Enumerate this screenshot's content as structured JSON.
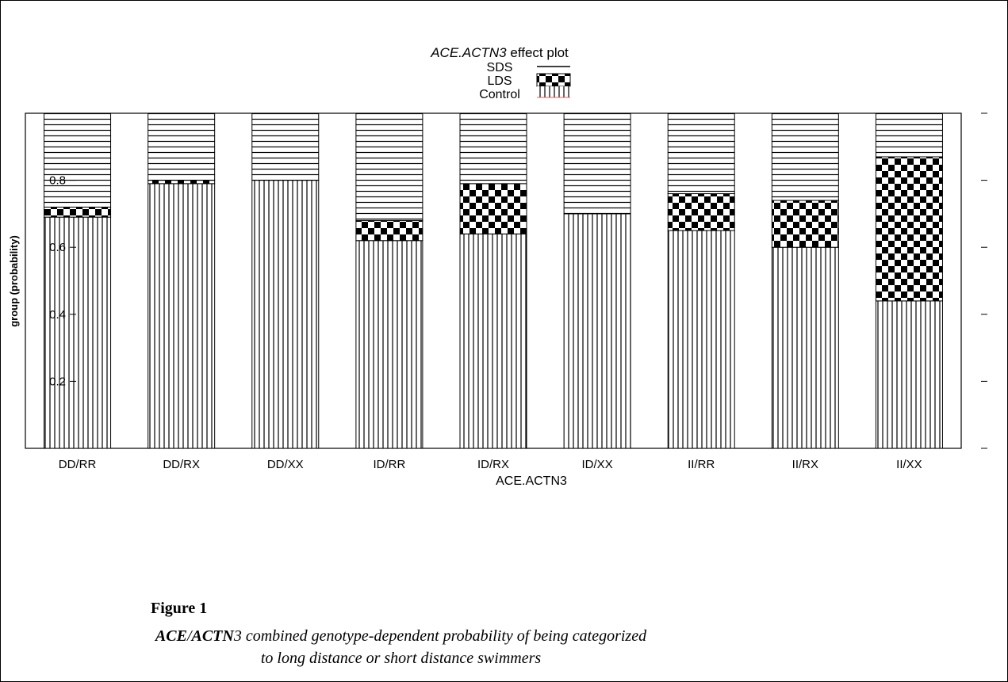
{
  "chart_data": {
    "type": "bar",
    "stacked": true,
    "title_italic": "ACE.ACTN3",
    "title_rest": " effect plot",
    "xlabel": "ACE.ACTN3",
    "ylabel": "group (probability)",
    "ylim": [
      0,
      1
    ],
    "yticks": [
      0.2,
      0.4,
      0.6,
      0.8
    ],
    "ytick_labels": [
      "0.2",
      "0.4",
      "0.6",
      "0.8"
    ],
    "categories": [
      "DD/RR",
      "DD/RX",
      "DD/XX",
      "ID/RR",
      "ID/RX",
      "ID/XX",
      "II/RR",
      "II/RX",
      "II/XX"
    ],
    "legend": [
      "SDS",
      "LDS",
      "Control"
    ],
    "series": [
      {
        "name": "Control",
        "pattern": "vertical-lines",
        "values": [
          0.69,
          0.79,
          0.8,
          0.62,
          0.64,
          0.7,
          0.65,
          0.6,
          0.44
        ]
      },
      {
        "name": "LDS",
        "pattern": "checkerboard",
        "values": [
          0.03,
          0.01,
          0.0,
          0.06,
          0.15,
          0.0,
          0.11,
          0.14,
          0.43
        ]
      },
      {
        "name": "SDS",
        "pattern": "horizontal-lines",
        "values": [
          0.28,
          0.2,
          0.2,
          0.32,
          0.21,
          0.3,
          0.24,
          0.26,
          0.13
        ]
      }
    ]
  },
  "caption": {
    "figure_label": "Figure 1",
    "gene1": "ACE",
    "slash": "/",
    "gene2": "ACTN",
    "gene2_suffix": "3",
    "line1_rest": " combined genotype-dependent probability of being categorized",
    "line2": "to long distance or short distance swimmers"
  }
}
